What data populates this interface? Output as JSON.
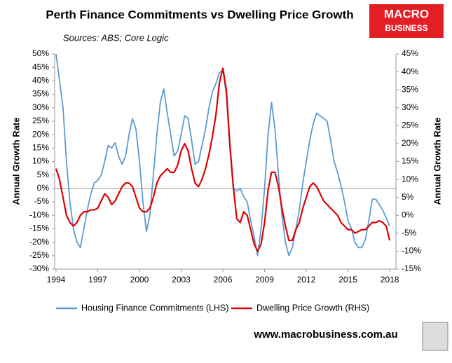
{
  "chart_data": {
    "type": "line",
    "title": "Perth Finance Commitments vs Dwelling Price Growth",
    "subtitle": "Sources: ABS; Core Logic",
    "y_label": "Annual Growth Rate",
    "y2_label": "Annual Growth Rate",
    "x": [
      1994,
      1994.25,
      1994.5,
      1994.75,
      1995,
      1995.25,
      1995.5,
      1995.75,
      1996,
      1996.25,
      1996.5,
      1996.75,
      1997,
      1997.25,
      1997.5,
      1997.75,
      1998,
      1998.25,
      1998.5,
      1998.75,
      1999,
      1999.25,
      1999.5,
      1999.75,
      2000,
      2000.25,
      2000.5,
      2000.75,
      2001,
      2001.25,
      2001.5,
      2001.75,
      2002,
      2002.25,
      2002.5,
      2002.75,
      2003,
      2003.25,
      2003.5,
      2003.75,
      2004,
      2004.25,
      2004.5,
      2004.75,
      2005,
      2005.25,
      2005.5,
      2005.75,
      2006,
      2006.25,
      2006.5,
      2006.75,
      2007,
      2007.25,
      2007.5,
      2007.75,
      2008,
      2008.25,
      2008.5,
      2008.75,
      2009,
      2009.25,
      2009.5,
      2009.75,
      2010,
      2010.25,
      2010.5,
      2010.75,
      2011,
      2011.25,
      2011.5,
      2011.75,
      2012,
      2012.25,
      2012.5,
      2012.75,
      2013,
      2013.25,
      2013.5,
      2013.75,
      2014,
      2014.25,
      2014.5,
      2014.75,
      2015,
      2015.25,
      2015.5,
      2015.75,
      2016,
      2016.25,
      2016.5,
      2016.75,
      2017,
      2017.25,
      2017.5,
      2017.75,
      2018
    ],
    "series": [
      {
        "name": "Housing Finance Commitments (LHS)",
        "color": "#5b9bd5",
        "axis": "y",
        "values": [
          50,
          40,
          30,
          10,
          -5,
          -15,
          -20,
          -22,
          -15,
          -8,
          -2,
          2,
          3,
          5,
          10,
          16,
          15,
          17,
          12,
          9,
          12,
          20,
          26,
          22,
          10,
          -5,
          -16,
          -10,
          5,
          20,
          32,
          37,
          28,
          20,
          12,
          14,
          20,
          27,
          26,
          18,
          9,
          10,
          16,
          22,
          30,
          36,
          39,
          43,
          44,
          35,
          15,
          0,
          -1,
          0,
          -3,
          -5,
          -12,
          -18,
          -25,
          -15,
          0,
          20,
          32,
          22,
          5,
          -10,
          -20,
          -25,
          -22,
          -15,
          -8,
          2,
          10,
          18,
          24,
          28,
          27,
          26,
          25,
          18,
          10,
          6,
          1,
          -5,
          -12,
          -15,
          -20,
          -22,
          -22,
          -19,
          -12,
          -4,
          -4,
          -6,
          -8,
          -11,
          -14
        ]
      },
      {
        "name": "Dwelling Price Growth (RHS)",
        "color": "#e00000",
        "axis": "y2",
        "values": [
          13,
          10,
          5,
          0,
          -2,
          -3,
          -2,
          0,
          1,
          1,
          1.5,
          1.5,
          2,
          4,
          6,
          5,
          3,
          4,
          6,
          8,
          9,
          9,
          8,
          5,
          2,
          1,
          1,
          2,
          5,
          9,
          11,
          12,
          13,
          12,
          12,
          14,
          18,
          20,
          18,
          13,
          9,
          8,
          10,
          13,
          17,
          22,
          28,
          37,
          41,
          35,
          20,
          8,
          -1,
          -2,
          1,
          0,
          -4,
          -8,
          -10,
          -8,
          -2,
          7,
          12,
          12,
          8,
          2,
          -3,
          -7,
          -7,
          -4,
          -2,
          2,
          5,
          8,
          9,
          8,
          6,
          4,
          3,
          2,
          1,
          0,
          -2,
          -3,
          -4,
          -4,
          -5,
          -4.5,
          -4,
          -4,
          -3,
          -2,
          -2,
          -1.5,
          -2,
          -3,
          -7
        ]
      }
    ],
    "xlim": [
      1993.9,
      2018.45
    ],
    "xticks": [
      1994,
      1997,
      2000,
      2003,
      2006,
      2009,
      2012,
      2015,
      2018
    ],
    "ylim": [
      -30,
      50
    ],
    "yticks": [
      {
        "value": 50,
        "label": "50%"
      },
      {
        "value": 45,
        "label": "45%"
      },
      {
        "value": 40,
        "label": "40%"
      },
      {
        "value": 35,
        "label": "35%"
      },
      {
        "value": 30,
        "label": "30%"
      },
      {
        "value": 25,
        "label": "25%"
      },
      {
        "value": 20,
        "label": "20%"
      },
      {
        "value": 15,
        "label": "15%"
      },
      {
        "value": 10,
        "label": "10%"
      },
      {
        "value": 5,
        "label": "5%"
      },
      {
        "value": 0,
        "label": "0%"
      },
      {
        "value": -5,
        "label": "-5%"
      },
      {
        "value": -10,
        "label": "-10%"
      },
      {
        "value": -15,
        "label": "-15%"
      },
      {
        "value": -20,
        "label": "-20%"
      },
      {
        "value": -25,
        "label": "-25%"
      },
      {
        "value": -30,
        "label": "-30%"
      }
    ],
    "y2lim": [
      -15,
      45
    ],
    "y2ticks": [
      {
        "value": 45,
        "label": "45%"
      },
      {
        "value": 40,
        "label": "40%"
      },
      {
        "value": 35,
        "label": "35%"
      },
      {
        "value": 30,
        "label": "30%"
      },
      {
        "value": 25,
        "label": "25%"
      },
      {
        "value": 20,
        "label": "20%"
      },
      {
        "value": 15,
        "label": "15%"
      },
      {
        "value": 10,
        "label": "10%"
      },
      {
        "value": 5,
        "label": "5%"
      },
      {
        "value": 0,
        "label": "0%"
      },
      {
        "value": -5,
        "label": "-5%"
      },
      {
        "value": -10,
        "label": "-10%"
      },
      {
        "value": -15,
        "label": "-15%"
      }
    ],
    "grid": false,
    "zero_line": true,
    "legend": "bottom"
  },
  "branding": {
    "logo_top": "MACRO",
    "logo_bottom": "BUSINESS",
    "website": "www.macrobusiness.com.au"
  }
}
